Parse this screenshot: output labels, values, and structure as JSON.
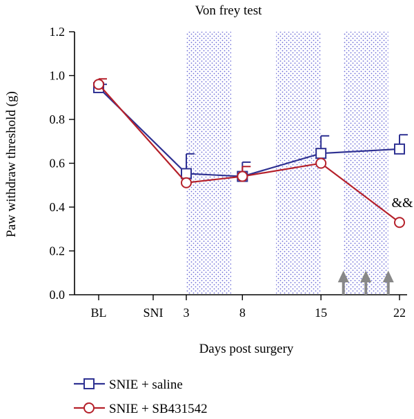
{
  "chart_data": {
    "type": "line",
    "title": "Von frey test",
    "xlabel": "Days post surgery",
    "ylabel": "Paw withdraw threshold (g)",
    "ylim": [
      0,
      1.2
    ],
    "yticks": [
      "0.0",
      "0.2",
      "0.4",
      "0.6",
      "0.8",
      "1.0",
      "1.2"
    ],
    "xticks": [
      "BL",
      "SNI",
      "3",
      "8",
      "15",
      "22"
    ],
    "x": [
      "BL",
      "3",
      "8",
      "15",
      "22"
    ],
    "series": [
      {
        "name": "SNIE + saline",
        "marker": "square",
        "color": "#2e3192",
        "values": [
          0.945,
          0.553,
          0.54,
          0.645,
          0.665
        ],
        "errors": [
          0.015,
          0.09,
          0.065,
          0.08,
          0.065
        ]
      },
      {
        "name": "SNIE + SB431542",
        "marker": "circle",
        "color": "#b5202a",
        "values": [
          0.96,
          0.511,
          0.54,
          0.6,
          0.33
        ],
        "errors": [
          0.025,
          0.0,
          0.045,
          0.0,
          0.0
        ]
      }
    ],
    "shaded_intervals": [
      [
        3,
        7
      ],
      [
        11,
        15
      ],
      [
        17,
        21
      ]
    ],
    "arrows_at_days": [
      17,
      19,
      21
    ],
    "annotation": "&&",
    "grid": false,
    "legend_position": "bottom-left"
  }
}
